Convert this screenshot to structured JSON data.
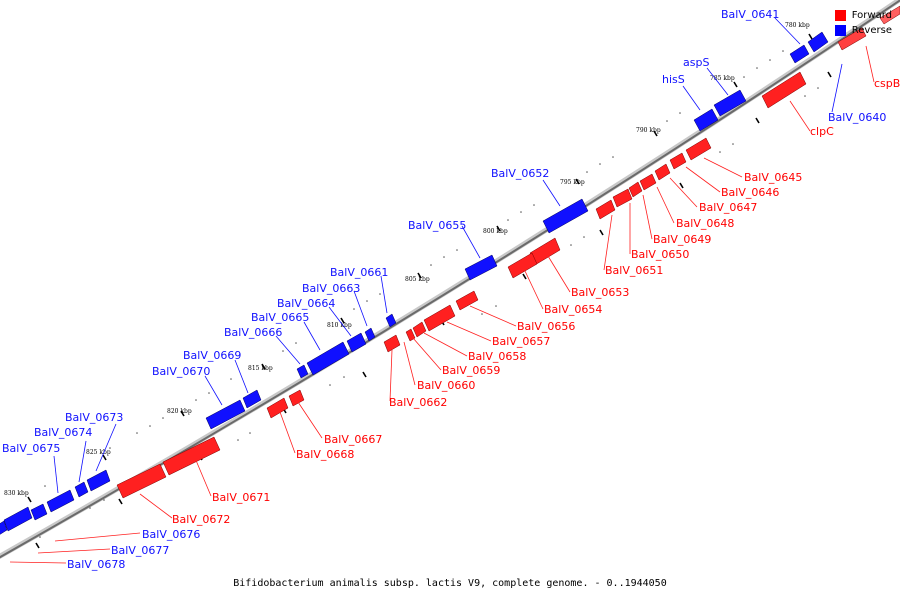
{
  "colors": {
    "forward": "#ff0000",
    "reverse": "#0000ff",
    "backbone": "#777777"
  },
  "legend": {
    "forward_label": "Forward",
    "reverse_label": "Reverse"
  },
  "caption": "Bifidobacterium animalis subsp. lactis V9, complete genome. - 0..1944050",
  "ticks": [
    "780 kbp",
    "785 kbp",
    "790 kbp",
    "795 kbp",
    "800 kbp",
    "805 kbp",
    "810 kbp",
    "815 kbp",
    "820 kbp",
    "825 kbp",
    "830 kbp"
  ],
  "forward_labels": [
    "cspB",
    "clpC",
    "BalV_0645",
    "BalV_0646",
    "BalV_0647",
    "BalV_0648",
    "BalV_0649",
    "BalV_0650",
    "BalV_0651",
    "BalV_0653",
    "BalV_0654",
    "BalV_0656",
    "BalV_0657",
    "BalV_0658",
    "BalV_0659",
    "BalV_0660",
    "BalV_0662",
    "BalV_0667",
    "BalV_0668",
    "BalV_0671",
    "BalV_0672",
    "BalV_0676",
    "BalV_0677",
    "BalV_0678"
  ],
  "reverse_labels": [
    "BalV_0641",
    "BalV_0640",
    "aspS",
    "hisS",
    "BalV_0652",
    "BalV_0655",
    "BalV_0661",
    "BalV_0663",
    "BalV_0664",
    "BalV_0665",
    "BalV_0666",
    "BalV_0669",
    "BalV_0670",
    "BalV_0673",
    "BalV_0674",
    "BalV_0675"
  ]
}
